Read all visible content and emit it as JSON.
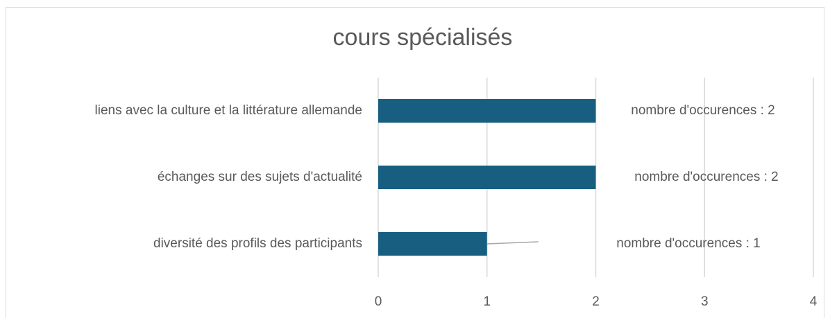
{
  "chart_data": {
    "type": "barh",
    "title": "cours spécialisés",
    "categories": [
      "liens avec la culture et la littérature allemande",
      "échanges sur des sujets d'actualité",
      "diversité des profils des participants"
    ],
    "values": [
      2,
      2,
      1
    ],
    "value_labels": [
      "nombre d'occurences : 2",
      "nombre d'occurences : 2",
      "nombre d'occurences : 1"
    ],
    "color": "#175e80",
    "xlim": [
      0,
      4
    ],
    "xticks": [
      0,
      1,
      2,
      3,
      4
    ],
    "grid": true
  }
}
